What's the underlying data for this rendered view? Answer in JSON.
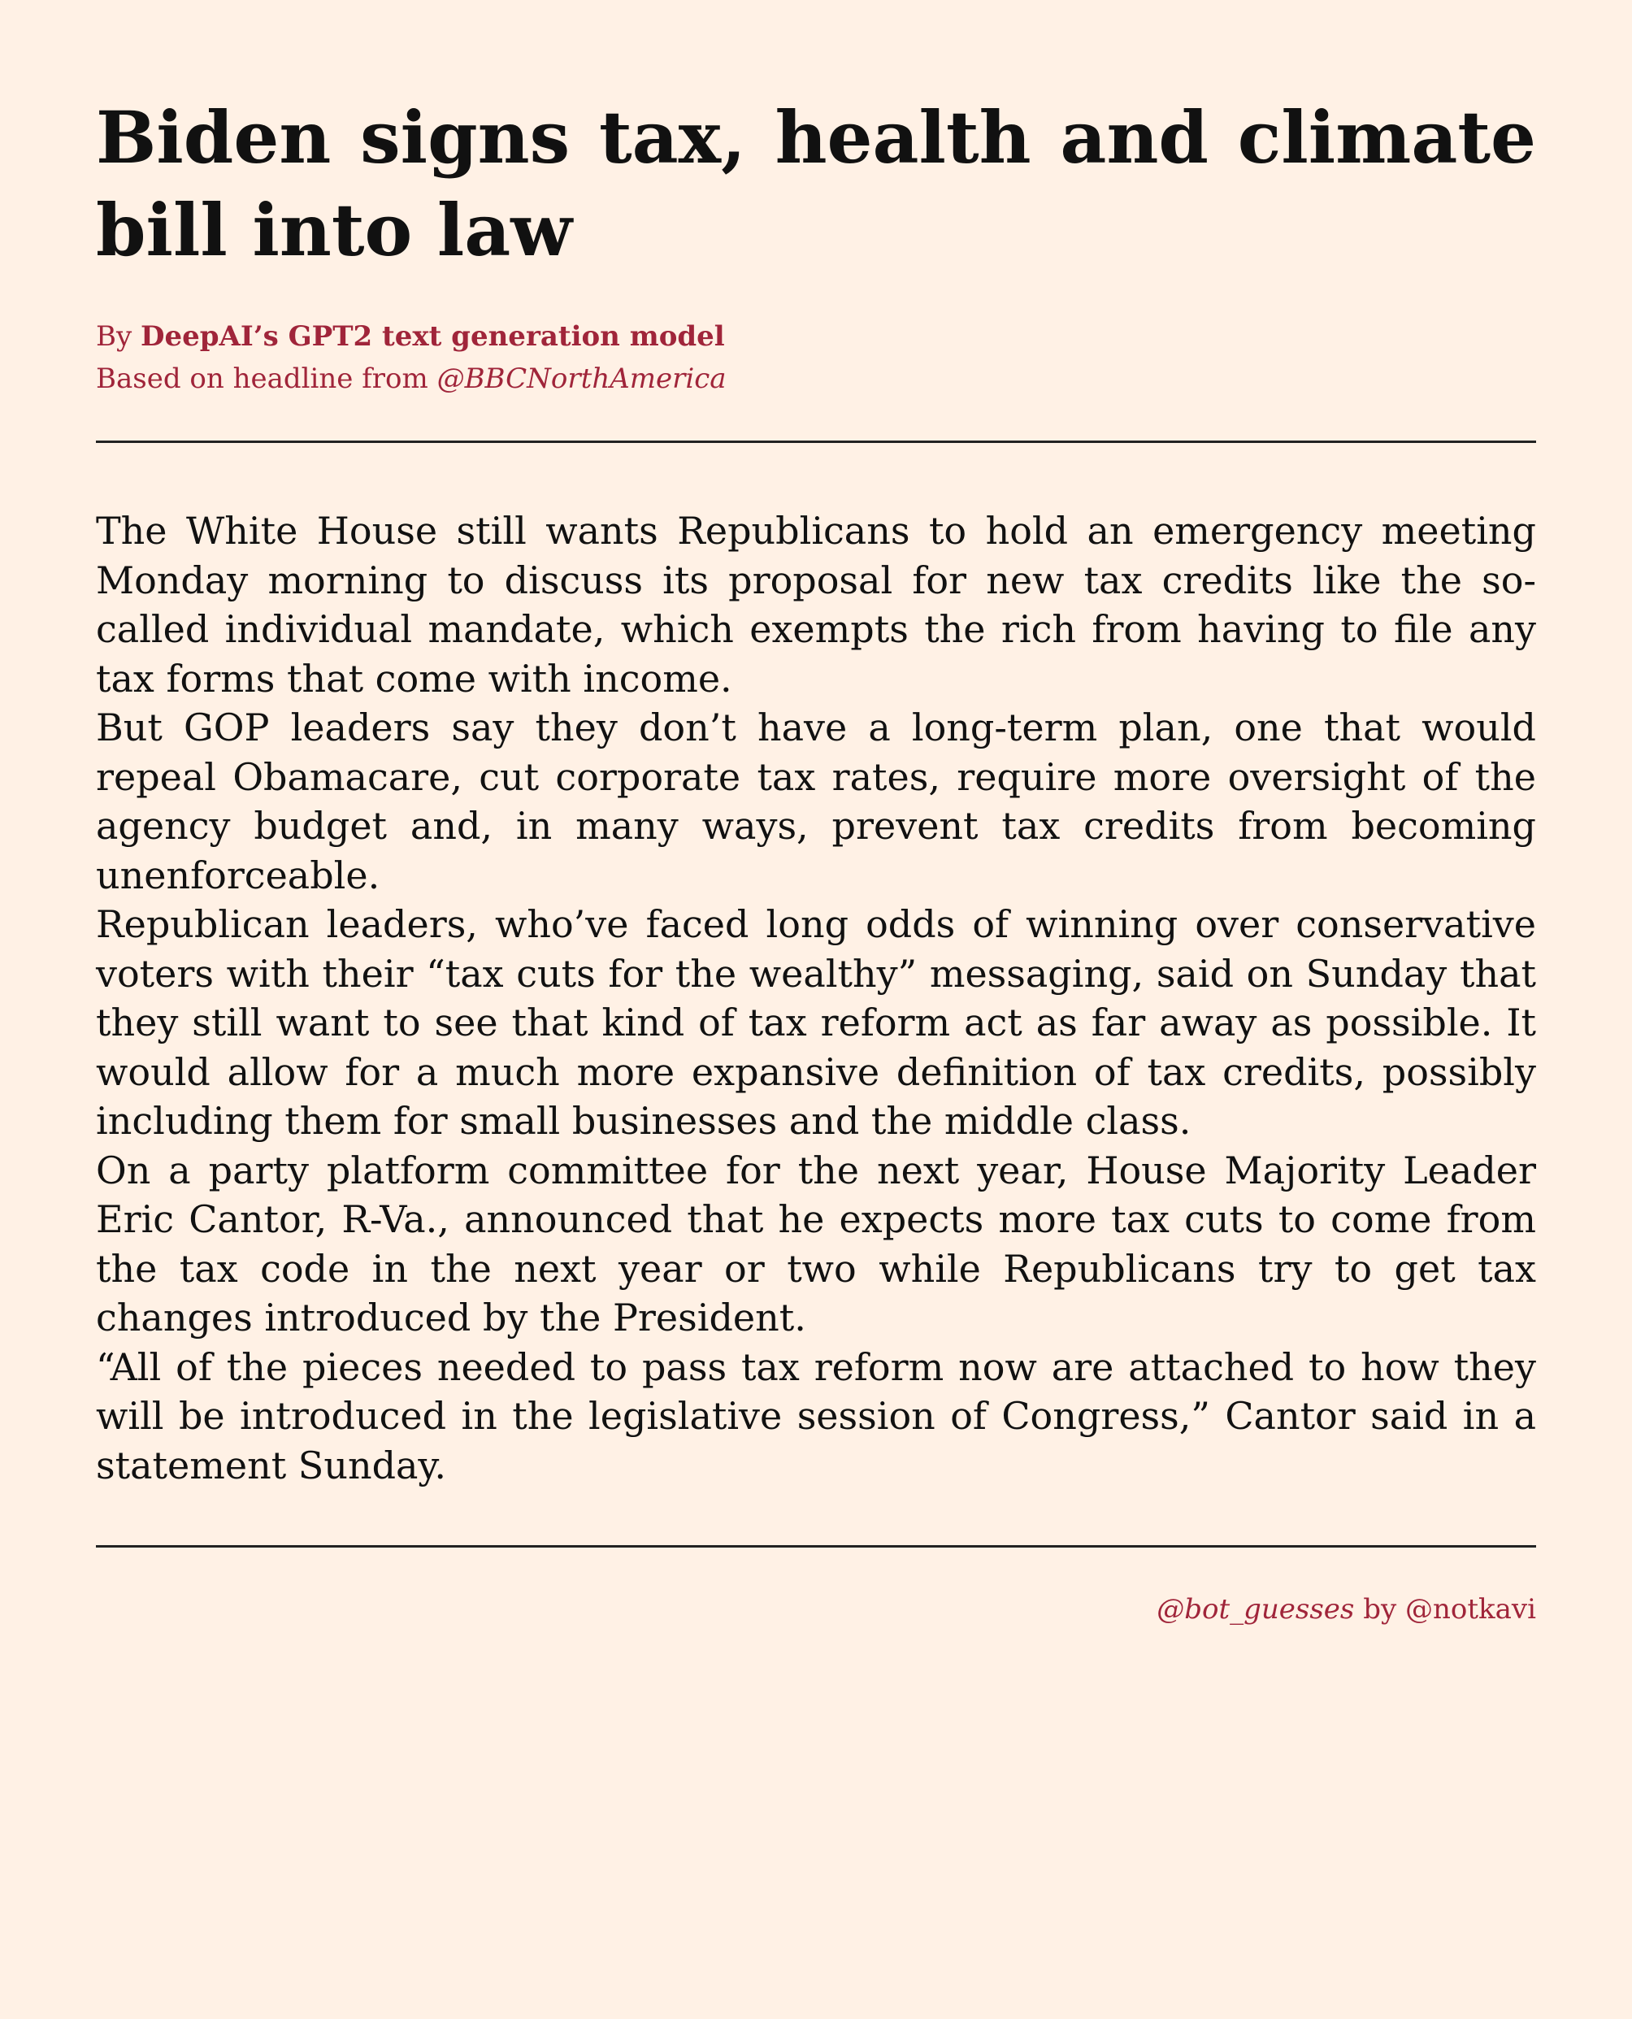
{
  "article": {
    "headline": "Biden signs tax, health and climate bill into law",
    "byline": {
      "prefix": "By",
      "author": "DeepAI’s GPT2 text generation model",
      "source_prefix": "Based on headline from",
      "source_handle": "@BBCNorthAmerica"
    },
    "paragraphs": [
      "The White House still wants Republicans to hold an emergency meeting Monday morning to discuss its proposal for new tax credits like the so-called individual mandate, which exempts the rich from having to file any tax forms that come with income.",
      "But GOP leaders say they don’t have a long-term plan, one that would repeal Obamacare, cut corporate tax rates, require more oversight of the agency budget and, in many ways, prevent tax credits from becoming unenforceable.",
      "Republican leaders, who’ve faced long odds of winning over conservative voters with their “tax cuts for the wealthy” messaging, said on Sunday that they still want to see that kind of tax reform act as far away as possible. It would allow for a much more expansive definition of tax credits, possibly including them for small businesses and the middle class.",
      "On a party platform committee for the next year, House Majority Leader Eric Cantor, R-Va., announced that he expects more tax cuts to come from the tax code in the next year or two while Republicans try to get tax changes introduced by the President.",
      "“All of the pieces needed to pass tax reform now are attached to how they will be introduced in the legislative session of Congress,” Cantor said in a statement Sunday."
    ]
  },
  "footer": {
    "bot_handle": "@bot_guesses",
    "by_word": "by",
    "author_handle": "@notkavi"
  },
  "colors": {
    "background": "#fff1e5",
    "accent": "#a0253a",
    "text": "#111111"
  }
}
